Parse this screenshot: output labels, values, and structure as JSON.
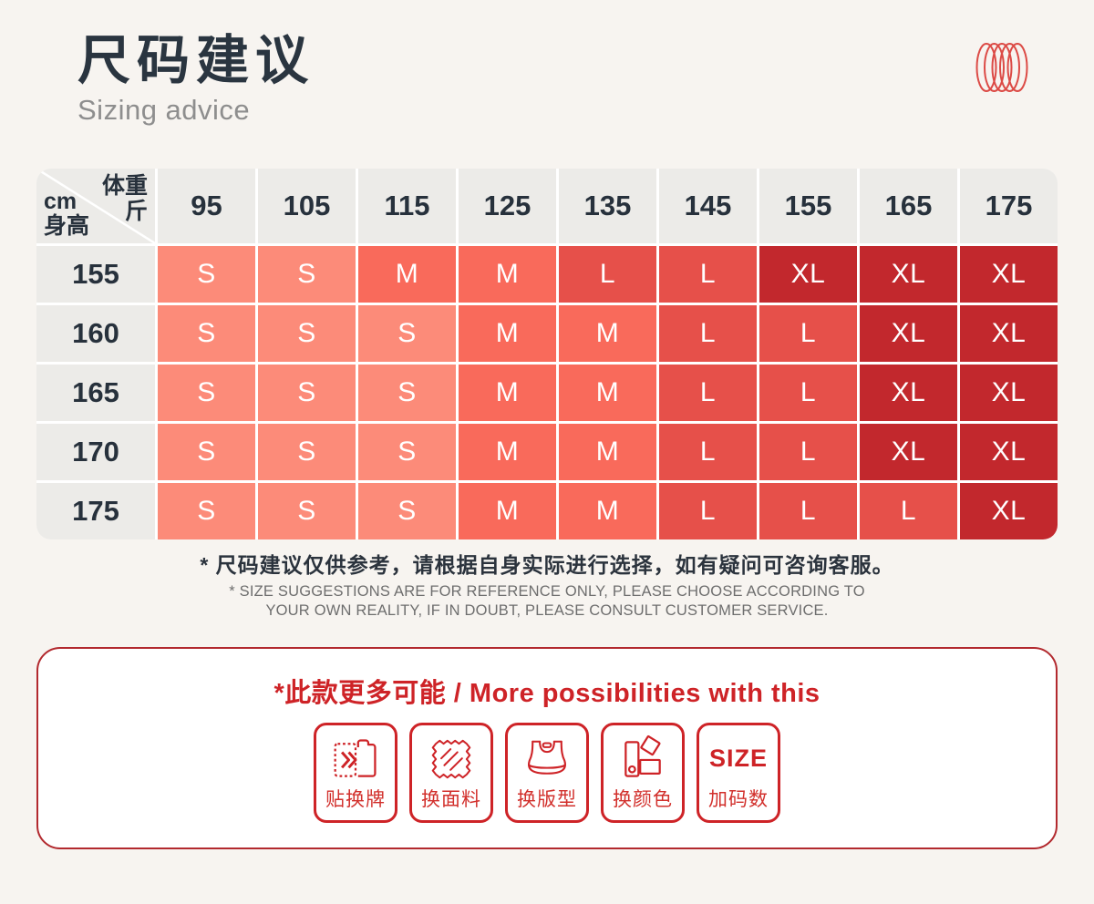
{
  "page": {
    "background": "#F7F4F0"
  },
  "header": {
    "title": "尺码建议",
    "subtitle": "Sizing advice",
    "title_color": "#2A3540",
    "spring_icon_color": "#DC4B46"
  },
  "table": {
    "corner": {
      "top_right_line1": "体重",
      "top_right_line2": "斤",
      "bottom_left_line1": "cm",
      "bottom_left_line2": "身高"
    },
    "weight_columns": [
      "95",
      "105",
      "115",
      "125",
      "135",
      "145",
      "155",
      "165",
      "175"
    ],
    "rows": [
      {
        "label": "155",
        "sizes": [
          "S",
          "S",
          "M",
          "M",
          "L",
          "L",
          "XL",
          "XL",
          "XL"
        ]
      },
      {
        "label": "160",
        "sizes": [
          "S",
          "S",
          "S",
          "M",
          "M",
          "L",
          "L",
          "XL",
          "XL"
        ]
      },
      {
        "label": "165",
        "sizes": [
          "S",
          "S",
          "S",
          "M",
          "M",
          "L",
          "L",
          "XL",
          "XL"
        ]
      },
      {
        "label": "170",
        "sizes": [
          "S",
          "S",
          "S",
          "M",
          "M",
          "L",
          "L",
          "XL",
          "XL"
        ]
      },
      {
        "label": "175",
        "sizes": [
          "S",
          "S",
          "S",
          "M",
          "M",
          "L",
          "L",
          "L",
          "XL"
        ]
      }
    ],
    "size_colors": {
      "S": "#FC8B79",
      "M": "#F96A5B",
      "L": "#E6504A",
      "XL": "#C2282D"
    },
    "header_bg": "#ECEBE8",
    "text_color": "#27313C"
  },
  "notes": {
    "cn": "* 尺码建议仅供参考，请根据自身实际进行选择，如有疑问可咨询客服。",
    "en_line1": "* SIZE SUGGESTIONS ARE FOR REFERENCE ONLY, PLEASE CHOOSE ACCORDING TO",
    "en_line2": "YOUR OWN REALITY, IF IN DOUBT, PLEASE CONSULT CUSTOMER SERVICE."
  },
  "possibilities": {
    "title": "*此款更多可能 / More possibilities with this",
    "accent": "#CE2327",
    "items": [
      {
        "label": "贴换牌",
        "icon": "tag-swap-icon"
      },
      {
        "label": "换面料",
        "icon": "fabric-icon"
      },
      {
        "label": "换版型",
        "icon": "bra-icon"
      },
      {
        "label": "换颜色",
        "icon": "color-swatch-icon"
      },
      {
        "label": "加码数",
        "icon": "size-text",
        "icon_text": "SIZE"
      }
    ]
  },
  "chart_data": {
    "type": "heatmap",
    "title": "尺码建议 / Sizing advice",
    "xlabel": "体重 (斤)",
    "ylabel": "身高 (cm)",
    "x_categories": [
      95,
      105,
      115,
      125,
      135,
      145,
      155,
      165,
      175
    ],
    "y_categories": [
      155,
      160,
      165,
      170,
      175
    ],
    "values": [
      [
        "S",
        "S",
        "M",
        "M",
        "L",
        "L",
        "XL",
        "XL",
        "XL"
      ],
      [
        "S",
        "S",
        "S",
        "M",
        "M",
        "L",
        "L",
        "XL",
        "XL"
      ],
      [
        "S",
        "S",
        "S",
        "M",
        "M",
        "L",
        "L",
        "XL",
        "XL"
      ],
      [
        "S",
        "S",
        "S",
        "M",
        "M",
        "L",
        "L",
        "XL",
        "XL"
      ],
      [
        "S",
        "S",
        "S",
        "M",
        "M",
        "L",
        "L",
        "L",
        "XL"
      ]
    ],
    "legend": {
      "S": "#FC8B79",
      "M": "#F96A5B",
      "L": "#E6504A",
      "XL": "#C2282D"
    },
    "grid": false,
    "legend_position": "none"
  }
}
